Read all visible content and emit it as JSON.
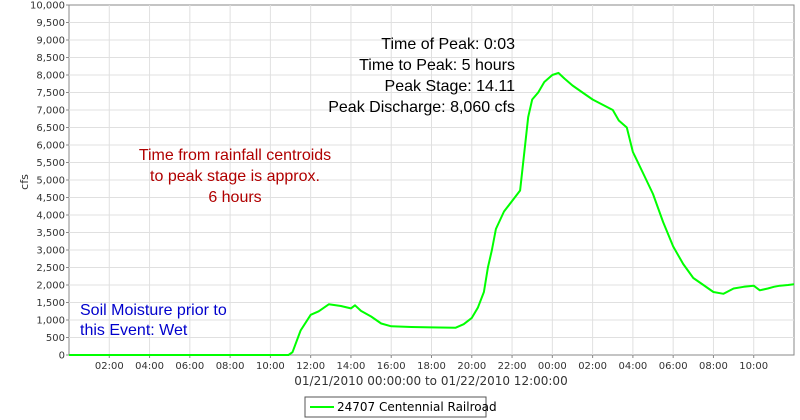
{
  "chart_data": {
    "type": "line",
    "ylabel": "cfs",
    "xlabel": "01/21/2010 00:00:00 to 01/22/2010 12:00:00",
    "ylim": [
      0,
      10000
    ],
    "xlim_hours": [
      0,
      36
    ],
    "y_ticks": [
      "0",
      "500",
      "1,000",
      "1,500",
      "2,000",
      "2,500",
      "3,000",
      "3,500",
      "4,000",
      "4,500",
      "5,000",
      "5,500",
      "6,000",
      "6,500",
      "7,000",
      "7,500",
      "8,000",
      "8,500",
      "9,000",
      "9,500",
      "10,000"
    ],
    "x_ticks": [
      {
        "label": "02:00",
        "hour": 2
      },
      {
        "label": "04:00",
        "hour": 4
      },
      {
        "label": "06:00",
        "hour": 6
      },
      {
        "label": "08:00",
        "hour": 8
      },
      {
        "label": "10:00",
        "hour": 10
      },
      {
        "label": "12:00",
        "hour": 12
      },
      {
        "label": "14:00",
        "hour": 14
      },
      {
        "label": "16:00",
        "hour": 16
      },
      {
        "label": "18:00",
        "hour": 18
      },
      {
        "label": "20:00",
        "hour": 20
      },
      {
        "label": "22:00",
        "hour": 22
      },
      {
        "label": "00:00",
        "hour": 24
      },
      {
        "label": "02:00",
        "hour": 26
      },
      {
        "label": "04:00",
        "hour": 28
      },
      {
        "label": "06:00",
        "hour": 30
      },
      {
        "label": "08:00",
        "hour": 32
      },
      {
        "label": "10:00",
        "hour": 34
      }
    ],
    "grid": true,
    "legend_placement": "bottom-center",
    "series": [
      {
        "name": "24707 Centennial Railroad",
        "color": "#00ff00",
        "x": [
          0,
          10.9,
          11.1,
          11.5,
          12.0,
          12.4,
          12.9,
          13.5,
          14.0,
          14.2,
          14.5,
          15.0,
          15.5,
          16.0,
          17.0,
          18.0,
          19.2,
          19.6,
          20.0,
          20.3,
          20.6,
          20.8,
          21.0,
          21.2,
          21.6,
          22.0,
          22.4,
          22.8,
          23.0,
          23.3,
          23.6,
          24.0,
          24.3,
          24.6,
          25.0,
          25.5,
          26.0,
          26.5,
          27.0,
          27.3,
          27.7,
          28.0,
          28.5,
          29.0,
          29.5,
          30.0,
          30.5,
          31.0,
          31.5,
          32.0,
          32.5,
          33.0,
          33.5,
          34.0,
          34.3,
          34.7,
          35.0,
          35.3,
          35.7,
          36.0
        ],
        "y": [
          0,
          0,
          80,
          700,
          1150,
          1250,
          1450,
          1400,
          1330,
          1420,
          1260,
          1100,
          900,
          820,
          800,
          790,
          780,
          880,
          1060,
          1350,
          1800,
          2500,
          3000,
          3600,
          4100,
          4400,
          4700,
          6800,
          7300,
          7500,
          7800,
          8000,
          8060,
          7900,
          7700,
          7500,
          7300,
          7150,
          7000,
          6700,
          6500,
          5800,
          5200,
          4600,
          3800,
          3100,
          2600,
          2200,
          2000,
          1800,
          1750,
          1900,
          1950,
          1980,
          1850,
          1900,
          1950,
          1980,
          2000,
          2020
        ]
      }
    ],
    "annotations": {
      "peak_info": [
        "Time of Peak: 0:03",
        "Time to Peak: 5 hours",
        "Peak Stage: 14.11",
        "Peak Discharge: 8,060 cfs"
      ],
      "rainfall_note": [
        "Time from rainfall centroids",
        "to peak stage is approx.",
        "6 hours"
      ],
      "soil_note": [
        "Soil Moisture prior to",
        "this Event: Wet"
      ]
    }
  }
}
